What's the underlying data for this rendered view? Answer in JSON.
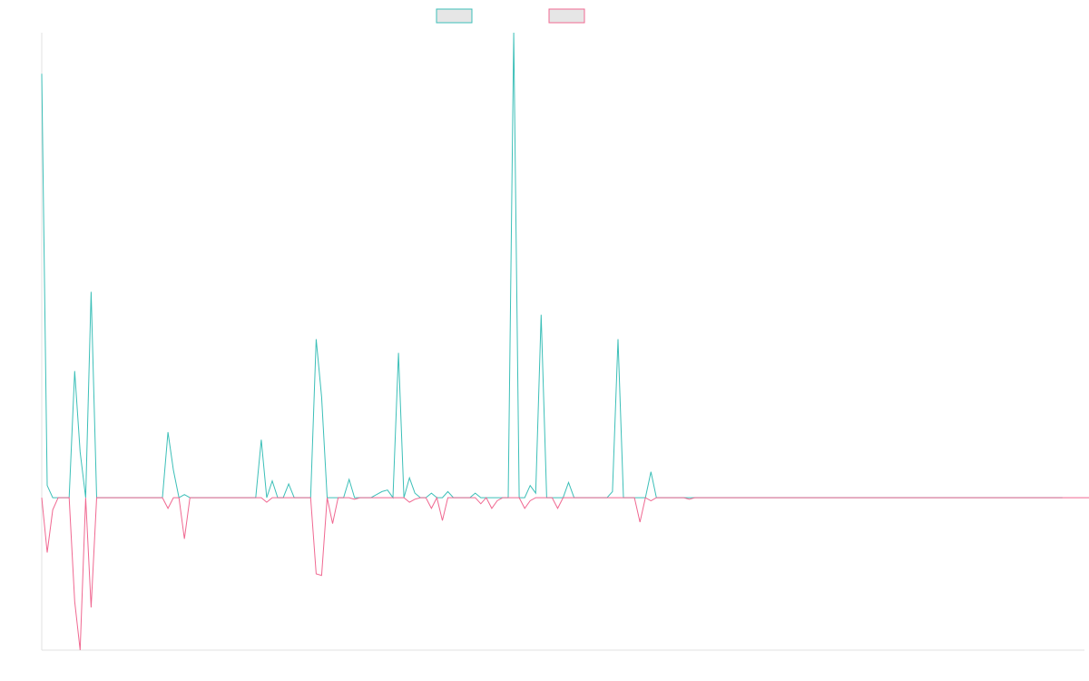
{
  "chart_data": {
    "type": "line",
    "title": "",
    "xlabel": "",
    "ylabel": "",
    "grid": false,
    "legend_placement": "top-center",
    "ylim": [
      -100,
      305
    ],
    "x_count": 191,
    "series": [
      {
        "name": "",
        "color": "#3cbfb8",
        "fill": "#e6e6e6",
        "values": [
          278,
          8,
          0,
          0,
          0,
          0,
          83,
          30,
          0,
          135,
          0,
          0,
          0,
          0,
          0,
          0,
          0,
          0,
          0,
          0,
          0,
          0,
          0,
          43,
          18,
          0,
          2,
          0,
          0,
          0,
          0,
          0,
          0,
          0,
          0,
          0,
          0,
          0,
          0,
          0,
          38,
          0,
          11,
          0,
          0,
          9,
          0,
          0,
          0,
          0,
          104,
          66,
          0,
          0,
          0,
          0,
          12,
          0,
          0,
          0,
          0,
          2,
          4,
          5,
          0,
          95,
          0,
          13,
          3,
          0,
          0,
          3,
          0,
          0,
          4,
          0,
          0,
          0,
          0,
          3,
          0,
          0,
          0,
          0,
          0,
          0,
          305,
          0,
          0,
          8,
          3,
          120,
          0,
          0,
          0,
          0,
          10,
          0,
          0,
          0,
          0,
          0,
          0,
          0,
          4,
          104,
          0,
          0,
          0,
          0,
          0,
          17,
          0,
          0,
          0,
          0,
          0,
          0,
          0,
          0,
          0,
          0,
          0,
          0,
          0,
          0,
          0,
          0,
          0,
          0,
          0,
          0,
          0,
          0,
          0,
          0,
          0,
          0,
          0,
          0,
          0,
          0,
          0,
          0,
          0,
          0,
          0,
          0,
          0,
          0,
          0,
          0,
          0,
          0,
          0,
          0,
          0,
          0,
          0,
          0,
          0,
          0,
          0,
          0,
          0,
          0,
          0,
          0,
          0,
          0,
          0,
          0,
          0,
          0,
          0,
          0,
          0,
          0,
          0,
          0,
          0,
          0,
          0,
          0,
          0,
          0,
          0
        ]
      },
      {
        "name": "",
        "color": "#f06891",
        "fill": "#e6e6e6",
        "values": [
          0,
          -36,
          -8,
          0,
          0,
          0,
          -68,
          -100,
          0,
          -72,
          0,
          0,
          0,
          0,
          0,
          0,
          0,
          0,
          0,
          0,
          0,
          0,
          0,
          -7,
          0,
          0,
          -27,
          0,
          0,
          0,
          0,
          0,
          0,
          0,
          0,
          0,
          0,
          0,
          0,
          0,
          0,
          -3,
          0,
          0,
          0,
          0,
          0,
          0,
          0,
          0,
          -50,
          -51,
          0,
          -17,
          0,
          0,
          0,
          -1,
          0,
          0,
          0,
          0,
          0,
          0,
          0,
          0,
          0,
          -3,
          -1,
          0,
          0,
          -7,
          0,
          -15,
          0,
          0,
          0,
          0,
          0,
          0,
          -4,
          0,
          -7,
          -2,
          0,
          0,
          0,
          0,
          -7,
          -2,
          0,
          0,
          0,
          0,
          -7,
          0,
          0,
          0,
          0,
          0,
          0,
          0,
          0,
          0,
          0,
          0,
          0,
          0,
          0,
          -16,
          0,
          -2,
          0,
          0,
          0,
          0,
          0,
          0,
          -1,
          0,
          0,
          0,
          0,
          0,
          0,
          0,
          0,
          0,
          0,
          0,
          0,
          0,
          0,
          0,
          0,
          0,
          0,
          0,
          0,
          0,
          0,
          0,
          0,
          0,
          0,
          0,
          0,
          0,
          0,
          0,
          0,
          0,
          0,
          0,
          0,
          0,
          0,
          0,
          0,
          0,
          0,
          0,
          0,
          0,
          0,
          0,
          0,
          0,
          0,
          0,
          0,
          0,
          0,
          0,
          0,
          0,
          0,
          0,
          0,
          0,
          0,
          0,
          0,
          0,
          0,
          0,
          0,
          0,
          0,
          0,
          0,
          0,
          0,
          0,
          0
        ]
      }
    ]
  }
}
